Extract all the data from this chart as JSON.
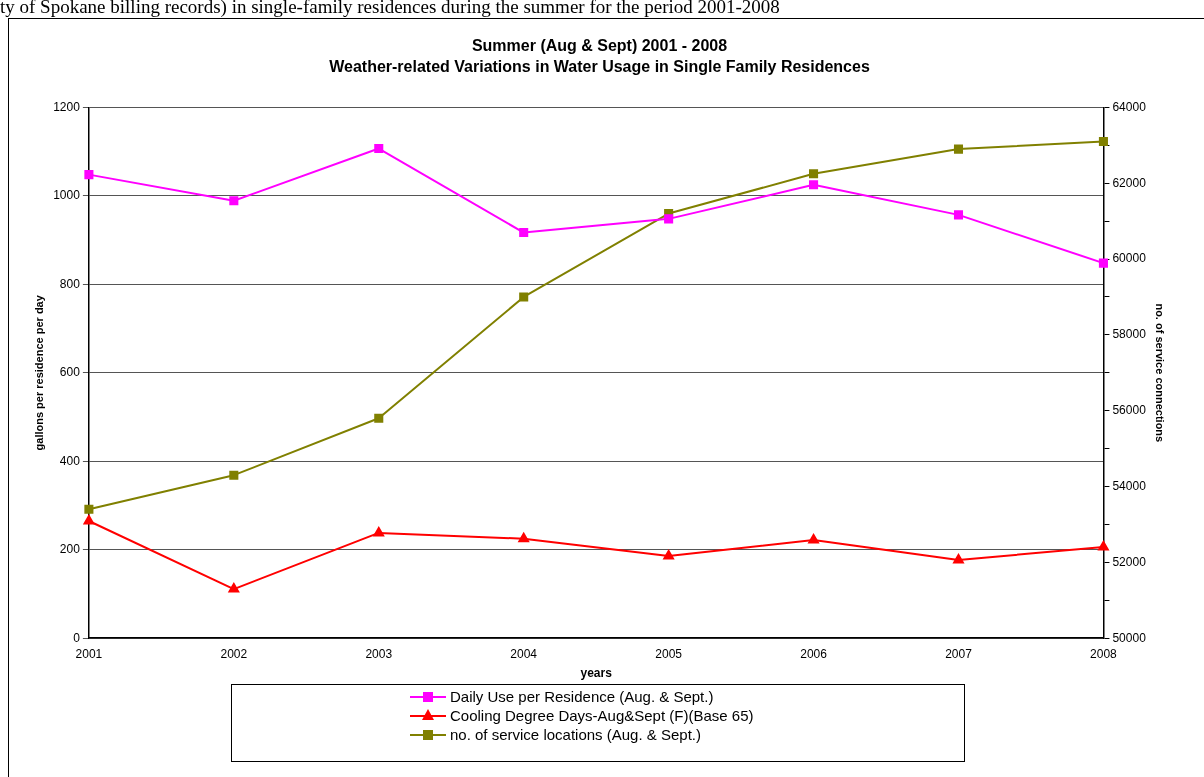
{
  "chart_data": {
    "type": "line",
    "title": "Summer (Aug & Sept) 2001 - 2008",
    "subtitle": "Weather-related Variations in Water Usage in Single Family Residences",
    "annotations": [
      "ty of Spokane billing records) in single-family residences during the summer for the period 2001-2008"
    ],
    "xlabel": "years",
    "ylabel": "gallons per residence per day",
    "y2label": "no. of service connections",
    "categories": [
      "2001",
      "2002",
      "2003",
      "2004",
      "2005",
      "2006",
      "2007",
      "2008"
    ],
    "series": [
      {
        "name": "Daily Use per Residence (Aug. & Sept.)",
        "color": "#ff00ff",
        "marker": "square",
        "values": [
          1048,
          989,
          1107,
          917,
          948,
          1025,
          957,
          848
        ]
      },
      {
        "name": "Cooling Degree Days-Aug&Sept (F)(Base 65)",
        "color": "#ff0000",
        "marker": "triangle",
        "values": [
          265,
          111,
          238,
          225,
          186,
          222,
          177,
          206
        ]
      },
      {
        "name": "no. of service locations (Aug. & Sept.)",
        "color": "#808000",
        "marker": "square",
        "axis": "y2",
        "values": [
          53400,
          54300,
          55800,
          59000,
          61200,
          62250,
          62900,
          63100
        ]
      }
    ],
    "ylim": [
      0,
      1200
    ],
    "yticks": [
      0,
      200,
      400,
      600,
      800,
      1000,
      1200
    ],
    "y2lim": [
      50000,
      64000
    ],
    "y2ticks": [
      50000,
      {
        "value": 51000,
        "label": null
      },
      52000,
      {
        "value": 53000,
        "label": null
      },
      54000,
      {
        "value": 55000,
        "label": null
      },
      56000,
      {
        "value": 57000,
        "label": null
      },
      58000,
      {
        "value": 59000,
        "label": null
      },
      60000,
      {
        "value": 61000,
        "label": null
      },
      62000,
      {
        "value": 63000,
        "label": null
      },
      64000
    ],
    "grid": "y",
    "legend": "bottom",
    "line_style": "solid"
  }
}
